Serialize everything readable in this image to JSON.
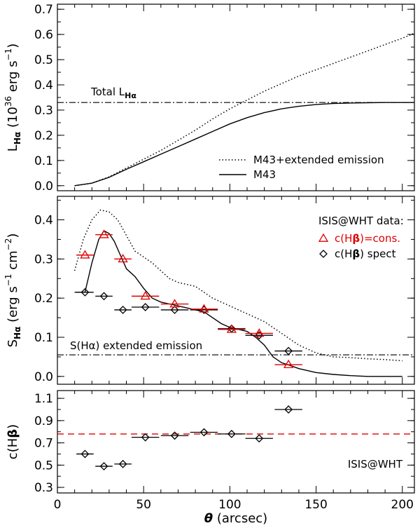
{
  "chart_data": [
    {
      "type": "line",
      "panel": "top",
      "ylabel_main": "L",
      "ylabel_sub": "Hα",
      "ylabel_unit_pre": "(10",
      "ylabel_unit_exp": "36",
      "ylabel_unit_post": " erg s",
      "ylabel_unit_exp2": "−1",
      "ylabel_unit_close": ")",
      "xlim": [
        0,
        207
      ],
      "ylim": [
        -0.02,
        0.72
      ],
      "yticks": [
        0.0,
        0.1,
        0.2,
        0.3,
        0.4,
        0.5,
        0.6,
        0.7
      ],
      "ytick_labels": [
        "0.0",
        "0.1",
        "0.2",
        "0.3",
        "0.4",
        "0.5",
        "0.6",
        "0.7"
      ],
      "annotation": {
        "text_main": "Total L",
        "text_sub": "Hα",
        "y": 0.33
      },
      "series": [
        {
          "name": "M43+extended emission",
          "style": "dotted",
          "x": [
            10,
            20,
            30,
            40,
            50,
            60,
            70,
            80,
            90,
            100,
            110,
            120,
            130,
            140,
            150,
            160,
            170,
            180,
            190,
            200,
            207
          ],
          "y": [
            0.0,
            0.01,
            0.035,
            0.07,
            0.105,
            0.14,
            0.18,
            0.22,
            0.265,
            0.305,
            0.34,
            0.375,
            0.405,
            0.435,
            0.46,
            0.485,
            0.51,
            0.535,
            0.56,
            0.585,
            0.605
          ]
        },
        {
          "name": "M43",
          "style": "solid",
          "x": [
            10,
            20,
            30,
            40,
            50,
            60,
            70,
            80,
            90,
            100,
            110,
            120,
            130,
            140,
            150,
            160,
            170,
            180,
            190,
            200,
            207
          ],
          "y": [
            0.0,
            0.01,
            0.033,
            0.065,
            0.095,
            0.125,
            0.155,
            0.185,
            0.215,
            0.245,
            0.27,
            0.29,
            0.305,
            0.315,
            0.322,
            0.326,
            0.328,
            0.329,
            0.33,
            0.33,
            0.33
          ]
        }
      ]
    },
    {
      "type": "line",
      "panel": "middle",
      "ylabel_main": "S",
      "ylabel_sub": "Hα",
      "ylabel_unit_pre": "(erg s",
      "ylabel_unit_exp": "−1",
      "ylabel_unit_post": " cm",
      "ylabel_unit_exp2": "−2",
      "ylabel_unit_close": ")",
      "xlim": [
        0,
        207
      ],
      "ylim": [
        -0.02,
        0.46
      ],
      "yticks": [
        0.0,
        0.1,
        0.2,
        0.3,
        0.4
      ],
      "ytick_labels": [
        "0.0",
        "0.1",
        "0.2",
        "0.3",
        "0.4"
      ],
      "legend_title": "ISIS@WHT data:",
      "legend_items": [
        {
          "label_a": "c(H",
          "label_b": "β",
          "label_c": ")=cons.",
          "color": "#e00000",
          "marker": "triangle"
        },
        {
          "label_a": "c(H",
          "label_b": "β",
          "label_c": ") spect",
          "color": "#000000",
          "marker": "diamond"
        }
      ],
      "annotation": {
        "text_a": "S(H",
        "text_b": "α",
        "text_c": ") extended emission",
        "y": 0.055
      },
      "series": [
        {
          "name": "",
          "style": "dotted",
          "x": [
            10,
            15,
            20,
            25,
            30,
            35,
            40,
            45,
            50,
            55,
            60,
            65,
            70,
            75,
            80,
            85,
            90,
            95,
            100,
            110,
            120,
            130,
            140,
            150,
            160,
            170,
            180,
            190,
            200
          ],
          "y": [
            0.27,
            0.35,
            0.4,
            0.425,
            0.42,
            0.4,
            0.36,
            0.32,
            0.305,
            0.29,
            0.27,
            0.25,
            0.24,
            0.235,
            0.23,
            0.215,
            0.2,
            0.19,
            0.18,
            0.16,
            0.14,
            0.11,
            0.08,
            0.06,
            0.05,
            0.048,
            0.045,
            0.043,
            0.04
          ]
        },
        {
          "name": "",
          "style": "solid",
          "x": [
            10,
            16,
            20,
            24,
            27,
            30,
            33,
            36,
            40,
            45,
            50,
            55,
            60,
            65,
            70,
            75,
            80,
            85,
            90,
            95,
            100,
            105,
            110,
            115,
            120,
            125,
            130,
            135,
            140,
            150,
            160,
            170,
            180,
            190,
            200
          ],
          "y": [
            0.215,
            0.215,
            0.29,
            0.35,
            0.372,
            0.365,
            0.345,
            0.315,
            0.275,
            0.255,
            0.225,
            0.2,
            0.19,
            0.185,
            0.18,
            0.175,
            0.17,
            0.165,
            0.15,
            0.135,
            0.125,
            0.12,
            0.115,
            0.1,
            0.08,
            0.05,
            0.035,
            0.028,
            0.02,
            0.01,
            0.005,
            0.002,
            0.0,
            0.0,
            0.0
          ]
        },
        {
          "name": "",
          "style": "dashdot",
          "x": [
            0,
            207
          ],
          "y": [
            0.055,
            0.055
          ]
        }
      ],
      "points_triangle": {
        "x": [
          16,
          27,
          38,
          51,
          68,
          85,
          101,
          117,
          134
        ],
        "y": [
          0.31,
          0.362,
          0.3,
          0.205,
          0.185,
          0.172,
          0.12,
          0.11,
          0.03
        ],
        "xerr": [
          5,
          5,
          5,
          8,
          8,
          8,
          8,
          8,
          8
        ]
      },
      "points_diamond": {
        "x": [
          16,
          27,
          38,
          51,
          68,
          85,
          101,
          117,
          134
        ],
        "y": [
          0.215,
          0.205,
          0.17,
          0.177,
          0.17,
          0.17,
          0.122,
          0.105,
          0.065
        ],
        "xerr": [
          5,
          5,
          5,
          8,
          8,
          8,
          8,
          8,
          8
        ]
      }
    },
    {
      "type": "scatter",
      "panel": "bottom",
      "ylabel_a": "c(H",
      "ylabel_b": "β",
      "ylabel_c": ")",
      "xlabel_theta": "θ",
      "xlabel_rest": " (arcsec)",
      "xlim": [
        0,
        207
      ],
      "ylim": [
        0.25,
        1.17
      ],
      "yticks": [
        0.3,
        0.5,
        0.7,
        0.9,
        1.1
      ],
      "ytick_labels": [
        "0.3",
        "0.5",
        "0.7",
        "0.9",
        "1.1"
      ],
      "xticks": [
        0,
        50,
        100,
        150,
        200
      ],
      "xtick_labels": [
        "0",
        "50",
        "100",
        "150",
        "200"
      ],
      "annotation": "ISIS@WHT",
      "reference_line": {
        "y": 0.78,
        "color": "#e00000",
        "style": "dashed"
      },
      "points": {
        "x": [
          16,
          27,
          38,
          51,
          68,
          85,
          101,
          117,
          134
        ],
        "y": [
          0.6,
          0.49,
          0.51,
          0.75,
          0.765,
          0.795,
          0.78,
          0.74,
          1.0
        ],
        "xerr": [
          5,
          5,
          5,
          8,
          8,
          8,
          8,
          8,
          8
        ]
      }
    }
  ]
}
